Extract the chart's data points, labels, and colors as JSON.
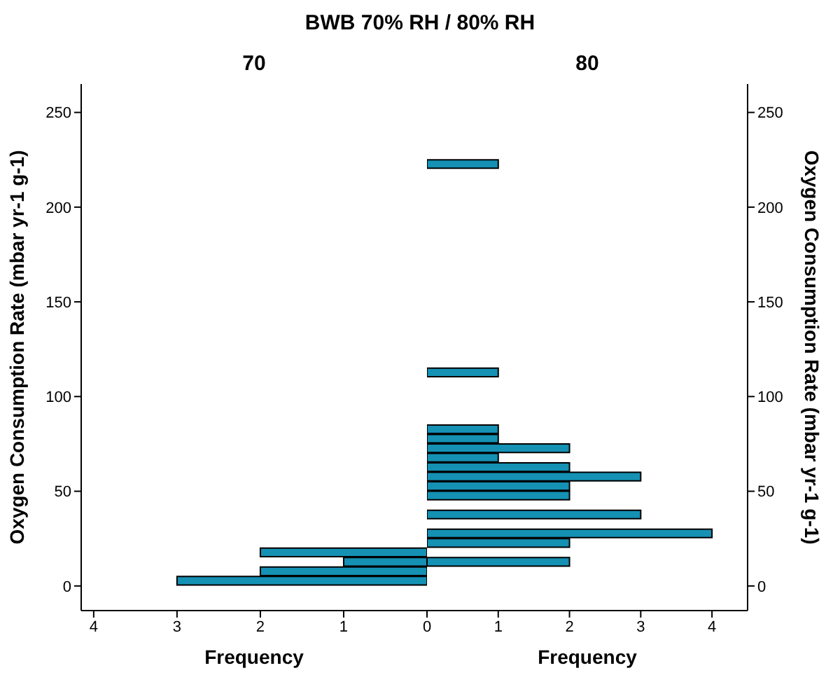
{
  "chart_data": [
    {
      "type": "histogram",
      "orientation": "horizontal",
      "title": "70",
      "annotations": [
        "BWB 70% RH / 80% RH"
      ],
      "ylabel": "Oxygen Consumption Rate (mbar yr-1 g-1)",
      "xlabel": "Frequency",
      "bins": [
        0,
        5,
        10,
        15,
        20
      ],
      "values": [
        3,
        2,
        1,
        2
      ],
      "color": "#1591b4",
      "xlim": [
        4.15,
        0
      ],
      "xticks": [
        4,
        3,
        2,
        1,
        0
      ],
      "ylim": [
        -13,
        265
      ],
      "yticks": [
        0,
        50,
        100,
        150,
        200,
        250
      ]
    },
    {
      "type": "histogram",
      "orientation": "horizontal",
      "title": "80",
      "ylabel": "Oxygen Consumption Rate (mbar yr-1 g-1)",
      "xlabel": "Frequency",
      "bins": [
        10,
        15,
        20,
        25,
        30,
        35,
        40,
        45,
        50,
        55,
        60,
        65,
        70,
        75,
        80,
        85,
        90,
        95,
        100,
        105,
        110,
        115,
        120,
        125,
        130,
        135,
        140,
        145,
        150,
        155,
        160,
        165,
        170,
        175,
        180,
        185,
        190,
        195,
        200,
        205,
        210,
        215,
        220,
        225
      ],
      "values": [
        2,
        0,
        2,
        4,
        0,
        3,
        0,
        2,
        2,
        3,
        2,
        1,
        2,
        1,
        1,
        0,
        0,
        0,
        0,
        0,
        1,
        0,
        0,
        0,
        0,
        0,
        0,
        0,
        0,
        0,
        0,
        0,
        0,
        0,
        0,
        0,
        0,
        0,
        0,
        0,
        0,
        0,
        1
      ],
      "color": "#1591b4",
      "xlim": [
        0,
        4.5
      ],
      "xticks": [
        1,
        2,
        3,
        4
      ],
      "ylim": [
        -13,
        265
      ],
      "yticks": [
        0,
        50,
        100,
        150,
        200,
        250
      ]
    }
  ]
}
